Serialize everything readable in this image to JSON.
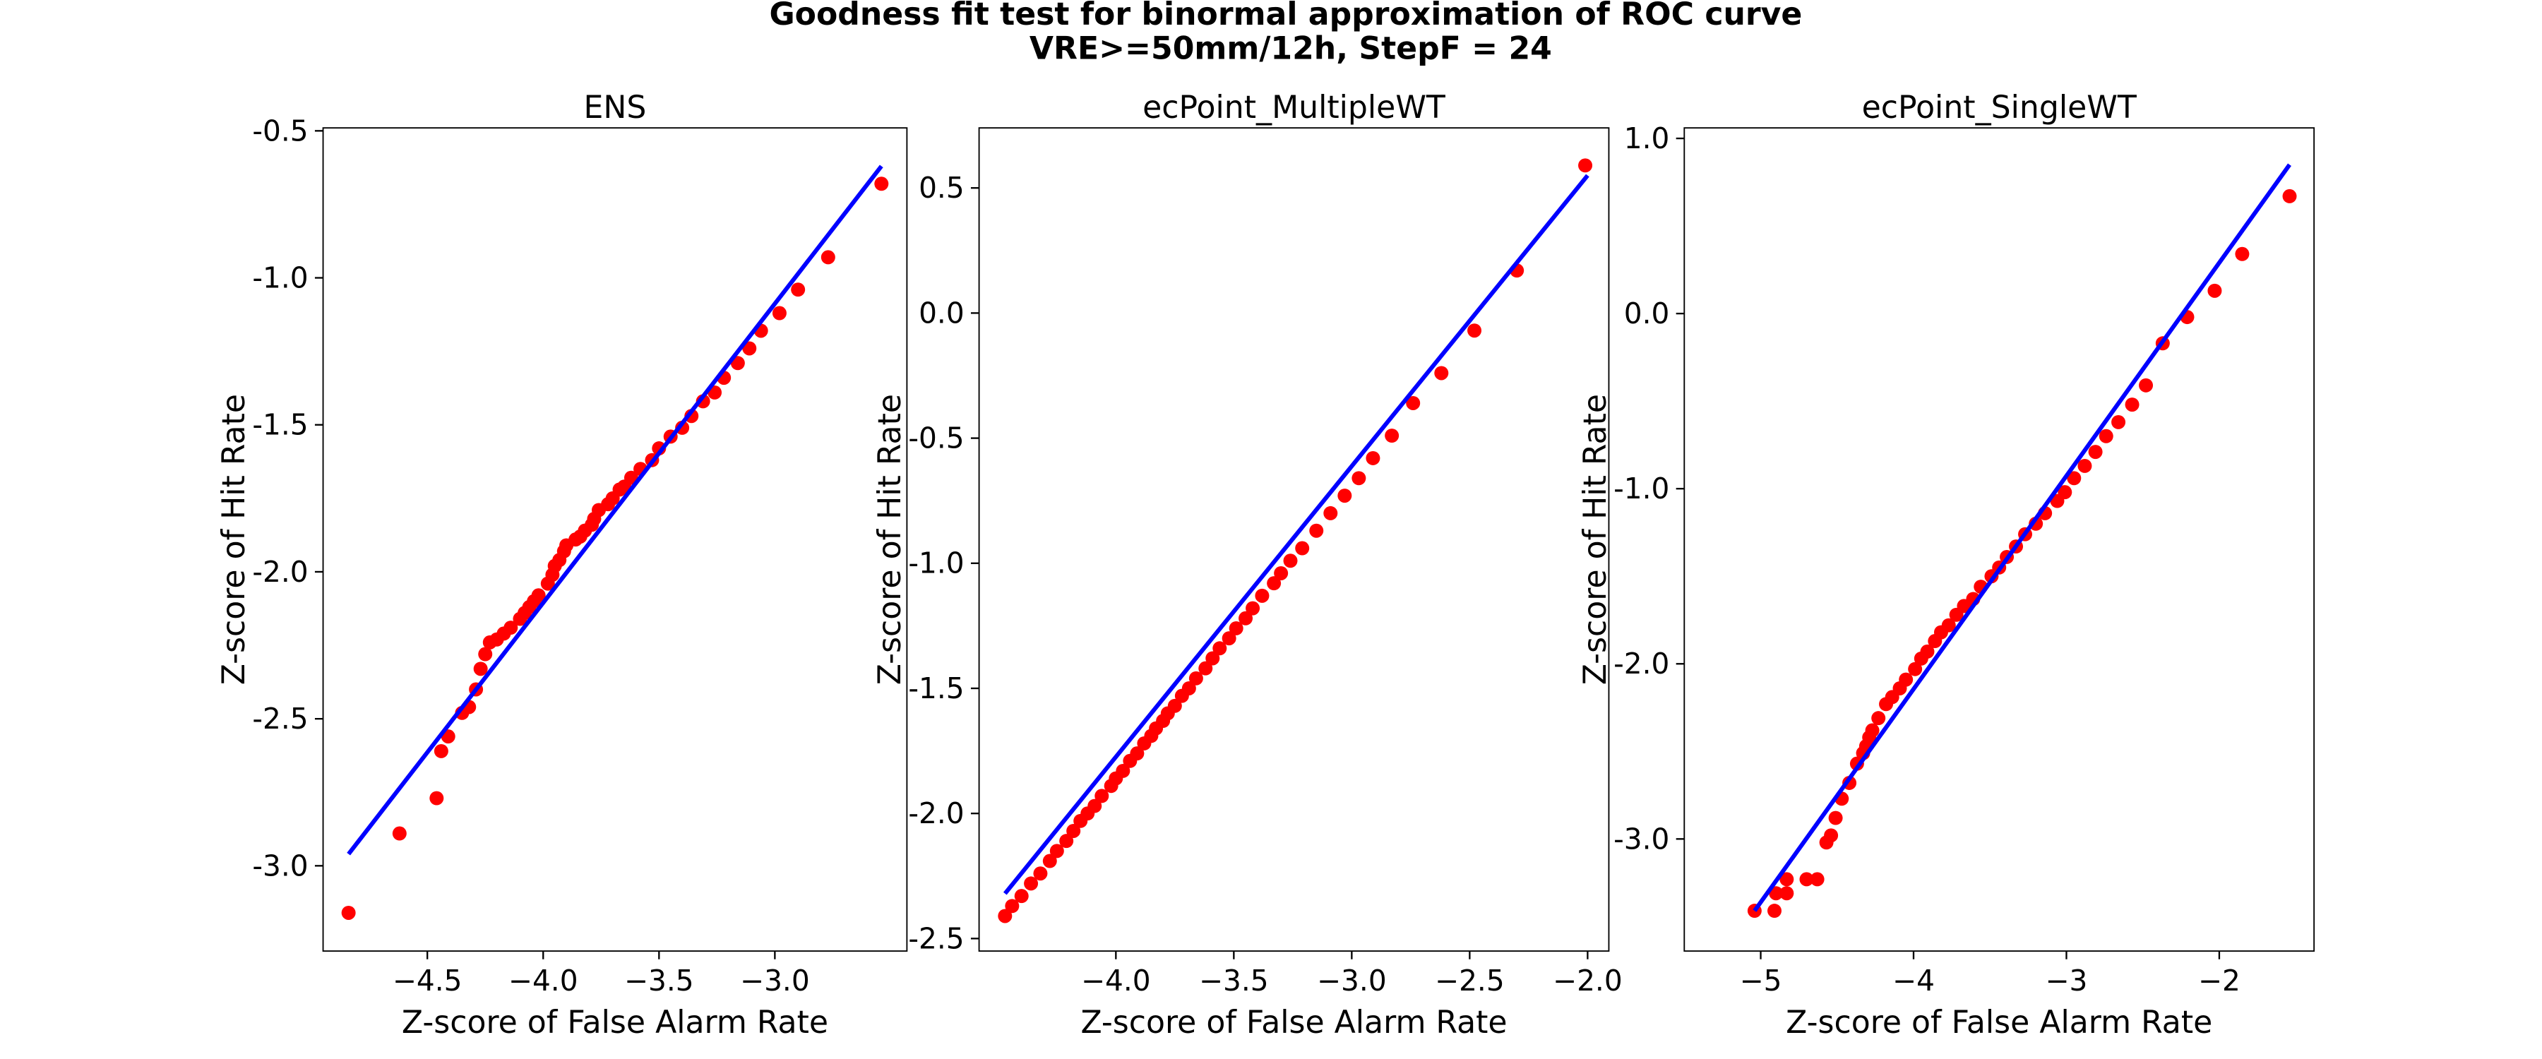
{
  "title": "Goodness fit test for binormal approximation of ROC curve",
  "subtitle": "VRE>=50mm/12h, StepF = 24",
  "chart_data": [
    {
      "type": "scatter",
      "title": "ENS",
      "xlabel": "Z-score of False Alarm Rate",
      "ylabel": "Z-score of Hit Rate",
      "xlim": [
        -4.95,
        -2.43
      ],
      "ylim": [
        -3.29,
        -0.49
      ],
      "xticks": [
        {
          "value": -4.5,
          "label": "−4.5"
        },
        {
          "value": -4.0,
          "label": "−4.0"
        },
        {
          "value": -3.5,
          "label": "−3.5"
        },
        {
          "value": -3.0,
          "label": "−3.0"
        }
      ],
      "yticks": [
        {
          "value": -3.0,
          "label": "-3.0"
        },
        {
          "value": -2.5,
          "label": "-2.5"
        },
        {
          "value": -2.0,
          "label": "-2.0"
        },
        {
          "value": -1.5,
          "label": "-1.5"
        },
        {
          "value": -1.0,
          "label": "-1.0"
        },
        {
          "value": -0.5,
          "label": "-0.5"
        }
      ],
      "series": [
        {
          "type": "scatter",
          "color": "#ff0000",
          "x": [
            -4.84,
            -4.62,
            -4.46,
            -4.44,
            -4.41,
            -4.35,
            -4.32,
            -4.29,
            -4.27,
            -4.25,
            -4.23,
            -4.2,
            -4.17,
            -4.14,
            -4.1,
            -4.08,
            -4.06,
            -4.04,
            -4.02,
            -3.98,
            -3.96,
            -3.95,
            -3.93,
            -3.91,
            -3.9,
            -3.86,
            -3.84,
            -3.82,
            -3.79,
            -3.78,
            -3.76,
            -3.72,
            -3.7,
            -3.67,
            -3.65,
            -3.62,
            -3.58,
            -3.53,
            -3.5,
            -3.45,
            -3.4,
            -3.36,
            -3.31,
            -3.26,
            -3.22,
            -3.16,
            -3.11,
            -3.06,
            -2.98,
            -2.9,
            -2.77,
            -2.54
          ],
          "y": [
            -3.16,
            -2.89,
            -2.77,
            -2.61,
            -2.56,
            -2.48,
            -2.46,
            -2.4,
            -2.33,
            -2.28,
            -2.24,
            -2.23,
            -2.21,
            -2.19,
            -2.16,
            -2.14,
            -2.12,
            -2.1,
            -2.08,
            -2.04,
            -2.01,
            -1.98,
            -1.96,
            -1.93,
            -1.91,
            -1.89,
            -1.88,
            -1.86,
            -1.84,
            -1.82,
            -1.79,
            -1.77,
            -1.75,
            -1.72,
            -1.71,
            -1.68,
            -1.65,
            -1.62,
            -1.58,
            -1.54,
            -1.51,
            -1.47,
            -1.42,
            -1.39,
            -1.34,
            -1.29,
            -1.24,
            -1.18,
            -1.12,
            -1.04,
            -0.93,
            -0.68
          ]
        },
        {
          "type": "line",
          "color": "#0000ff",
          "x": [
            -4.84,
            -2.54
          ],
          "y": [
            -2.96,
            -0.62
          ]
        }
      ]
    },
    {
      "type": "scatter",
      "title": "ecPoint_MultipleWT",
      "xlabel": "Z-score of False Alarm Rate",
      "ylabel": "Z-score of Hit Rate",
      "xlim": [
        -4.58,
        -1.91
      ],
      "ylim": [
        -2.55,
        0.74
      ],
      "xticks": [
        {
          "value": -4.0,
          "label": "−4.0"
        },
        {
          "value": -3.5,
          "label": "−3.5"
        },
        {
          "value": -3.0,
          "label": "−3.0"
        },
        {
          "value": -2.5,
          "label": "−2.5"
        },
        {
          "value": -2.0,
          "label": "−2.0"
        }
      ],
      "yticks": [
        {
          "value": -2.5,
          "label": "-2.5"
        },
        {
          "value": -2.0,
          "label": "-2.0"
        },
        {
          "value": -1.5,
          "label": "-1.5"
        },
        {
          "value": -1.0,
          "label": "-1.0"
        },
        {
          "value": -0.5,
          "label": "-0.5"
        },
        {
          "value": 0.0,
          "label": "0.0"
        },
        {
          "value": 0.5,
          "label": "0.5"
        }
      ],
      "series": [
        {
          "type": "scatter",
          "color": "#ff0000",
          "x": [
            -4.47,
            -4.44,
            -4.4,
            -4.36,
            -4.32,
            -4.28,
            -4.25,
            -4.21,
            -4.18,
            -4.15,
            -4.12,
            -4.09,
            -4.06,
            -4.02,
            -4.0,
            -3.97,
            -3.94,
            -3.91,
            -3.88,
            -3.85,
            -3.83,
            -3.8,
            -3.78,
            -3.75,
            -3.72,
            -3.69,
            -3.66,
            -3.62,
            -3.59,
            -3.56,
            -3.52,
            -3.49,
            -3.45,
            -3.42,
            -3.38,
            -3.33,
            -3.3,
            -3.26,
            -3.21,
            -3.15,
            -3.09,
            -3.03,
            -2.97,
            -2.91,
            -2.83,
            -2.74,
            -2.62,
            -2.48,
            -2.3,
            -2.01
          ],
          "y": [
            -2.41,
            -2.37,
            -2.33,
            -2.28,
            -2.24,
            -2.19,
            -2.15,
            -2.11,
            -2.07,
            -2.03,
            -2.0,
            -1.97,
            -1.93,
            -1.89,
            -1.86,
            -1.83,
            -1.79,
            -1.76,
            -1.72,
            -1.69,
            -1.66,
            -1.63,
            -1.6,
            -1.57,
            -1.53,
            -1.5,
            -1.46,
            -1.42,
            -1.38,
            -1.34,
            -1.3,
            -1.26,
            -1.22,
            -1.18,
            -1.13,
            -1.08,
            -1.04,
            -0.99,
            -0.94,
            -0.87,
            -0.8,
            -0.73,
            -0.66,
            -0.58,
            -0.49,
            -0.36,
            -0.24,
            -0.07,
            0.17,
            0.59
          ]
        },
        {
          "type": "line",
          "color": "#0000ff",
          "x": [
            -4.47,
            -2.0
          ],
          "y": [
            -2.32,
            0.55
          ]
        }
      ]
    },
    {
      "type": "scatter",
      "title": "ecPoint_SingleWT",
      "xlabel": "Z-score of False Alarm Rate",
      "ylabel": "Z-score of Hit Rate",
      "xlim": [
        -5.5,
        -1.38
      ],
      "ylim": [
        -3.64,
        1.06
      ],
      "xticks": [
        {
          "value": -5,
          "label": "−5"
        },
        {
          "value": -4,
          "label": "−4"
        },
        {
          "value": -3,
          "label": "−3"
        },
        {
          "value": -2,
          "label": "−2"
        }
      ],
      "yticks": [
        {
          "value": -3.0,
          "label": "-3.0"
        },
        {
          "value": -2.0,
          "label": "-2.0"
        },
        {
          "value": -1.0,
          "label": "-1.0"
        },
        {
          "value": 0.0,
          "label": "0.0"
        },
        {
          "value": 1.0,
          "label": "1.0"
        }
      ],
      "series": [
        {
          "type": "scatter",
          "color": "#ff0000",
          "x": [
            -5.04,
            -4.91,
            -4.9,
            -4.83,
            -4.83,
            -4.7,
            -4.63,
            -4.57,
            -4.54,
            -4.51,
            -4.47,
            -4.42,
            -4.37,
            -4.33,
            -4.31,
            -4.29,
            -4.27,
            -4.23,
            -4.18,
            -4.14,
            -4.09,
            -4.05,
            -3.99,
            -3.95,
            -3.91,
            -3.86,
            -3.82,
            -3.77,
            -3.72,
            -3.67,
            -3.61,
            -3.56,
            -3.49,
            -3.44,
            -3.39,
            -3.33,
            -3.27,
            -3.2,
            -3.14,
            -3.06,
            -3.01,
            -2.95,
            -2.88,
            -2.81,
            -2.74,
            -2.66,
            -2.57,
            -2.48,
            -2.37,
            -2.21,
            -2.03,
            -1.85,
            -1.54
          ],
          "y": [
            -3.41,
            -3.41,
            -3.31,
            -3.31,
            -3.23,
            -3.23,
            -3.23,
            -3.02,
            -2.98,
            -2.88,
            -2.77,
            -2.68,
            -2.57,
            -2.51,
            -2.47,
            -2.42,
            -2.38,
            -2.31,
            -2.23,
            -2.19,
            -2.14,
            -2.09,
            -2.03,
            -1.97,
            -1.93,
            -1.87,
            -1.82,
            -1.78,
            -1.72,
            -1.67,
            -1.63,
            -1.56,
            -1.5,
            -1.45,
            -1.39,
            -1.33,
            -1.26,
            -1.2,
            -1.14,
            -1.07,
            -1.02,
            -0.94,
            -0.87,
            -0.79,
            -0.7,
            -0.62,
            -0.52,
            -0.41,
            -0.17,
            -0.02,
            0.13,
            0.34,
            0.67
          ]
        },
        {
          "type": "line",
          "color": "#0000ff",
          "x": [
            -5.04,
            -1.54
          ],
          "y": [
            -3.41,
            0.85
          ]
        }
      ]
    }
  ]
}
